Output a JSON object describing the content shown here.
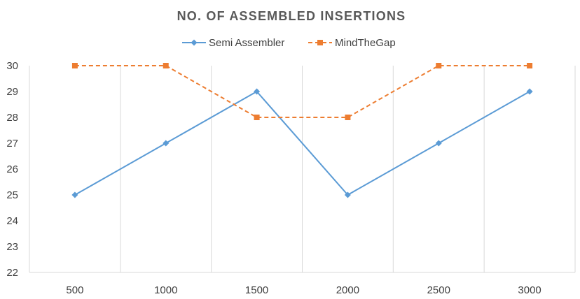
{
  "chart_data": {
    "type": "line",
    "title": "NO. OF ASSEMBLED INSERTIONS",
    "xlabel": "",
    "ylabel": "",
    "categories": [
      "500",
      "1000",
      "1500",
      "2000",
      "2500",
      "3000"
    ],
    "ylim": [
      22,
      30
    ],
    "yticks": [
      22,
      23,
      24,
      25,
      26,
      27,
      28,
      29,
      30
    ],
    "grid": "vertical",
    "legend_position": "top",
    "series": [
      {
        "name": "Semi Assembler",
        "values": [
          25,
          27,
          29,
          25,
          27,
          29
        ],
        "color": "#5b9bd5",
        "line_style": "solid",
        "marker": "diamond"
      },
      {
        "name": "MindTheGap",
        "values": [
          30,
          30,
          28,
          28,
          30,
          30
        ],
        "color": "#ed7d31",
        "line_style": "dashed",
        "marker": "square"
      }
    ]
  }
}
